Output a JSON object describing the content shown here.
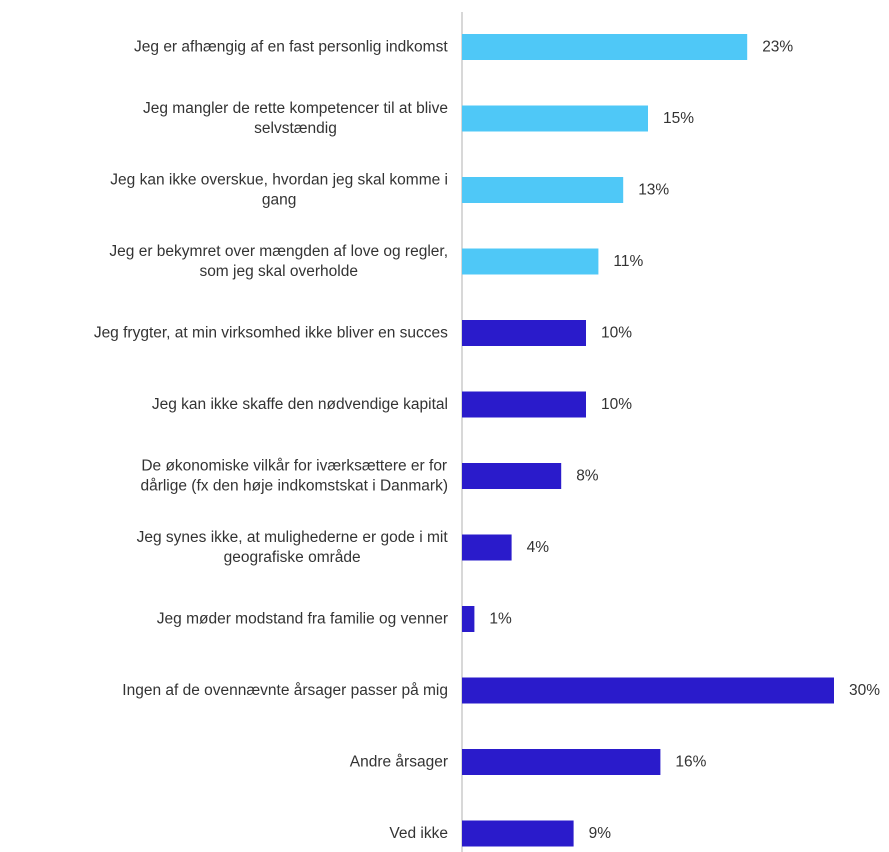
{
  "chart_data": {
    "type": "bar",
    "orientation": "horizontal",
    "title": "",
    "xlabel": "",
    "ylabel": "",
    "xlim": [
      0,
      30
    ],
    "grid": false,
    "legend": "none",
    "value_suffix": "%",
    "colors": {
      "highlight": "#4FC8F7",
      "primary": "#2A1BCB",
      "axis": "#cccccc",
      "text": "#333333"
    },
    "categories": [
      [
        "Jeg er afhængig af en fast personlig indkomst"
      ],
      [
        "Jeg mangler de rette kompetencer til at blive",
        "selvstændig"
      ],
      [
        "Jeg kan ikke overskue, hvordan jeg skal komme i",
        "gang"
      ],
      [
        "Jeg er bekymret over mængden af love og regler,",
        "som jeg skal overholde"
      ],
      [
        "Jeg frygter, at min virksomhed ikke bliver en succes"
      ],
      [
        "Jeg kan ikke skaffe den nødvendige kapital"
      ],
      [
        "De økonomiske vilkår for iværksættere er for",
        "dårlige (fx den høje indkomstskat i Danmark)"
      ],
      [
        "Jeg synes ikke, at mulighederne er gode i mit",
        "geografiske område"
      ],
      [
        "Jeg møder modstand fra familie og venner"
      ],
      [
        "Ingen af de ovennævnte årsager passer på mig"
      ],
      [
        "Andre årsager"
      ],
      [
        "Ved ikke"
      ]
    ],
    "values": [
      23,
      15,
      13,
      11,
      10,
      10,
      8,
      4,
      1,
      30,
      16,
      9
    ],
    "highlighted": [
      true,
      true,
      true,
      true,
      false,
      false,
      false,
      false,
      false,
      false,
      false,
      false
    ]
  }
}
